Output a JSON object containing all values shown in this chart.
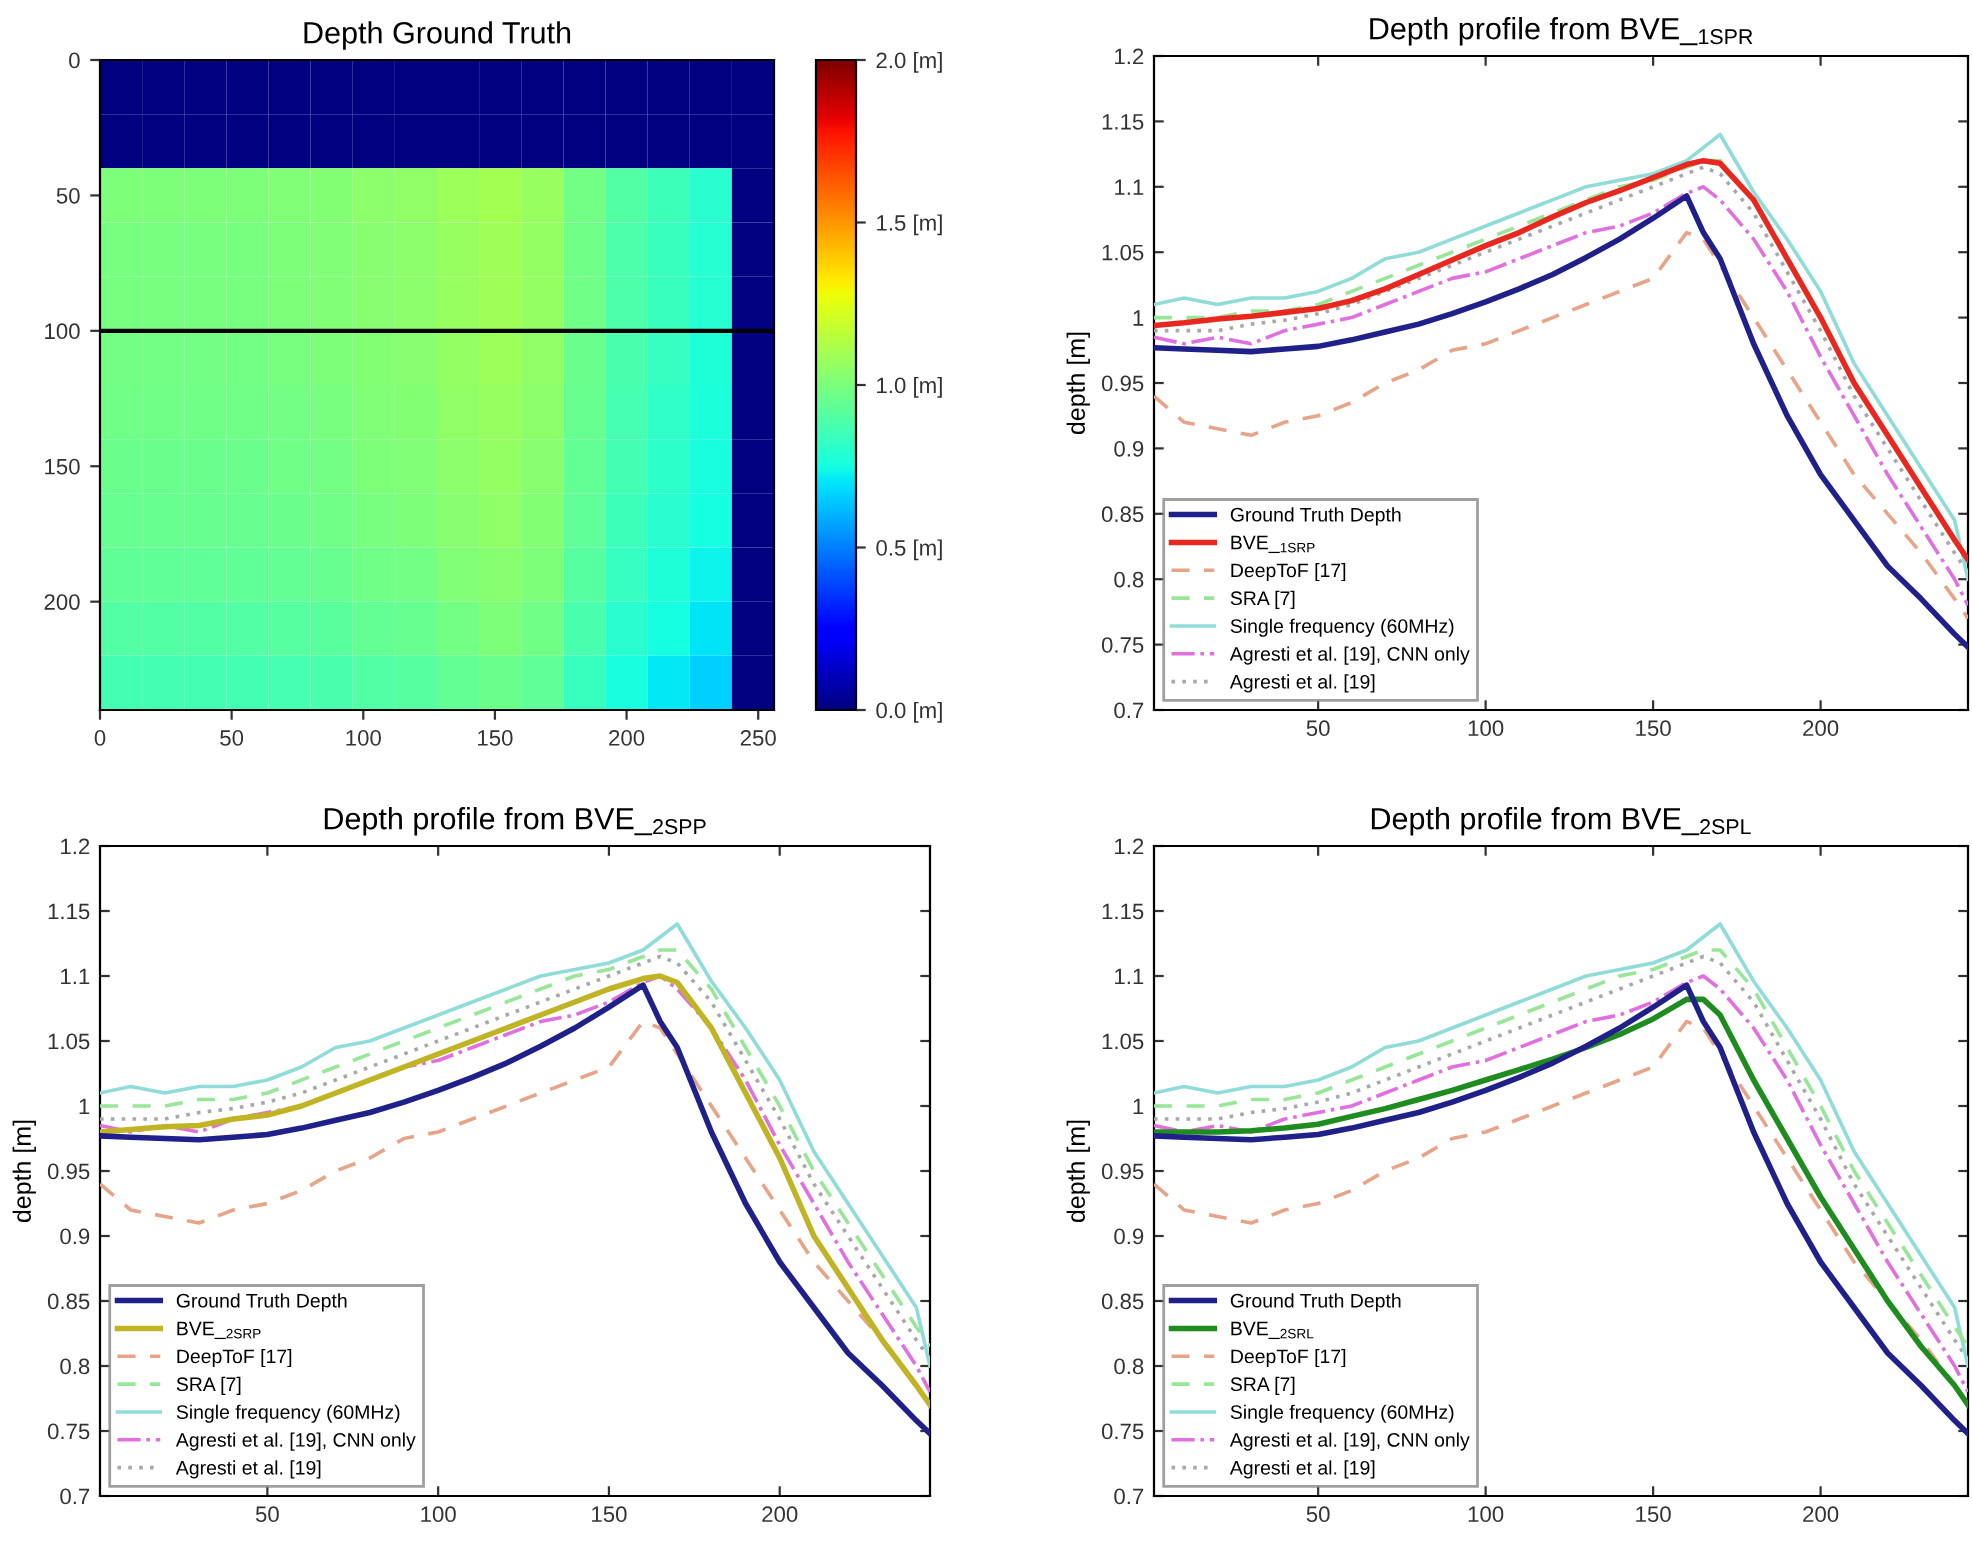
{
  "chart_data": [
    {
      "type": "heatmap",
      "title": "Depth Ground Truth",
      "xlim": [
        0,
        256
      ],
      "ylim": [
        240,
        0
      ],
      "xticks": [
        0,
        50,
        100,
        150,
        200,
        250
      ],
      "yticks": [
        0,
        50,
        100,
        150,
        200
      ],
      "clim": [
        0,
        2
      ],
      "cticks": [
        {
          "value": 0,
          "label": "0.0 [m]"
        },
        {
          "value": 0.5,
          "label": "0.5 [m]"
        },
        {
          "value": 1,
          "label": "1.0 [m]"
        },
        {
          "value": 1.5,
          "label": "1.5 [m]"
        },
        {
          "value": 2,
          "label": "2.0 [m]"
        }
      ],
      "ref_lines": [
        {
          "axis": "y",
          "value": 100,
          "label": null,
          "color": "#000000"
        }
      ],
      "cells": [
        [
          0,
          0,
          0,
          0,
          0,
          0,
          0,
          0,
          0,
          0,
          0,
          0,
          0,
          0,
          0,
          0
        ],
        [
          0,
          0,
          0,
          0,
          0,
          0,
          0,
          0,
          0,
          0,
          0,
          0,
          0,
          0,
          0,
          0
        ],
        [
          1.0,
          1.0,
          1.0,
          1.0,
          1.01,
          1.02,
          1.04,
          1.05,
          1.08,
          1.1,
          1.07,
          0.98,
          0.9,
          0.85,
          0.8,
          0
        ],
        [
          0.99,
          0.99,
          0.99,
          0.99,
          1.0,
          1.01,
          1.03,
          1.04,
          1.07,
          1.09,
          1.06,
          0.97,
          0.89,
          0.84,
          0.79,
          0
        ],
        [
          0.99,
          0.99,
          0.99,
          0.99,
          1.0,
          1.01,
          1.03,
          1.04,
          1.07,
          1.09,
          1.06,
          0.97,
          0.89,
          0.84,
          0.79,
          0
        ],
        [
          0.98,
          0.98,
          0.98,
          0.98,
          0.99,
          1.0,
          1.02,
          1.03,
          1.06,
          1.08,
          1.05,
          0.96,
          0.88,
          0.83,
          0.78,
          0
        ],
        [
          0.97,
          0.97,
          0.97,
          0.97,
          0.98,
          0.99,
          1.01,
          1.02,
          1.05,
          1.07,
          1.04,
          0.95,
          0.87,
          0.82,
          0.77,
          0
        ],
        [
          0.96,
          0.96,
          0.96,
          0.96,
          0.97,
          0.98,
          1.0,
          1.01,
          1.04,
          1.06,
          1.03,
          0.94,
          0.86,
          0.81,
          0.76,
          0
        ],
        [
          0.95,
          0.95,
          0.95,
          0.95,
          0.96,
          0.97,
          0.99,
          1.0,
          1.03,
          1.05,
          1.02,
          0.93,
          0.85,
          0.8,
          0.75,
          0
        ],
        [
          0.93,
          0.93,
          0.93,
          0.93,
          0.94,
          0.95,
          0.97,
          0.98,
          1.01,
          1.03,
          1.0,
          0.91,
          0.83,
          0.78,
          0.73,
          0
        ],
        [
          0.9,
          0.9,
          0.9,
          0.9,
          0.91,
          0.92,
          0.94,
          0.95,
          0.98,
          1.0,
          0.97,
          0.88,
          0.8,
          0.75,
          0.7,
          0
        ],
        [
          0.86,
          0.86,
          0.86,
          0.86,
          0.87,
          0.88,
          0.9,
          0.91,
          0.94,
          0.96,
          0.93,
          0.84,
          0.76,
          0.71,
          0.66,
          0
        ]
      ]
    },
    {
      "type": "line",
      "title": "Depth profile from BVE_$_{1SPR}$",
      "ylabel": "depth [m]",
      "x": [
        1,
        10,
        20,
        30,
        40,
        50,
        60,
        70,
        80,
        90,
        100,
        110,
        120,
        130,
        140,
        150,
        160,
        165,
        170,
        180,
        190,
        200,
        210,
        220,
        230,
        240,
        244
      ],
      "xlim": [
        1,
        244
      ],
      "xticks": [
        50,
        100,
        150,
        200
      ],
      "ylim": [
        0.7,
        1.2
      ],
      "yticks": [
        0.7,
        0.75,
        0.8,
        0.85,
        0.9,
        0.95,
        1,
        1.05,
        1.1,
        1.15,
        1.2
      ],
      "grid": false,
      "legend": "bottom left",
      "series": [
        {
          "name": "Ground Truth Depth",
          "color": "#20208a",
          "line_style": "solid",
          "values": [
            0.977,
            0.976,
            0.975,
            0.974,
            0.976,
            0.978,
            0.983,
            0.989,
            0.995,
            1.003,
            1.012,
            1.022,
            1.033,
            1.046,
            1.06,
            1.076,
            1.093,
            1.065,
            1.045,
            0.98,
            0.925,
            0.88,
            0.845,
            0.81,
            0.785,
            0.758,
            0.748
          ]
        },
        {
          "name": "BVE_$_{1SRP}$",
          "color": "#e8281e",
          "line_style": "solid",
          "values": [
            0.994,
            0.996,
            0.999,
            1.001,
            1.004,
            1.007,
            1.013,
            1.022,
            1.033,
            1.044,
            1.055,
            1.065,
            1.077,
            1.088,
            1.097,
            1.107,
            1.117,
            1.12,
            1.118,
            1.09,
            1.045,
            1.0,
            0.95,
            0.91,
            0.87,
            0.83,
            0.815
          ]
        },
        {
          "name": "DeepToF [17]",
          "color": "#e8a488",
          "line_style": "dashed",
          "values": [
            0.94,
            0.92,
            0.915,
            0.91,
            0.92,
            0.925,
            0.935,
            0.95,
            0.96,
            0.975,
            0.98,
            0.99,
            1.0,
            1.01,
            1.02,
            1.03,
            1.065,
            1.06,
            1.04,
            1.0,
            0.96,
            0.92,
            0.88,
            0.85,
            0.82,
            0.785,
            0.77
          ]
        },
        {
          "name": "SRA [7]",
          "color": "#98e698",
          "line_style": "dashed",
          "values": [
            1.0,
            1.0,
            1.0,
            1.005,
            1.005,
            1.01,
            1.02,
            1.03,
            1.04,
            1.05,
            1.06,
            1.07,
            1.08,
            1.09,
            1.1,
            1.105,
            1.115,
            1.12,
            1.12,
            1.09,
            1.045,
            1.0,
            0.95,
            0.91,
            0.87,
            0.83,
            0.815
          ]
        },
        {
          "name": "Single frequency (60MHz)",
          "color": "#8fdcd8",
          "line_style": "solid",
          "values": [
            1.01,
            1.015,
            1.01,
            1.015,
            1.015,
            1.02,
            1.03,
            1.045,
            1.05,
            1.06,
            1.07,
            1.08,
            1.09,
            1.1,
            1.105,
            1.11,
            1.12,
            1.13,
            1.14,
            1.096,
            1.06,
            1.02,
            0.965,
            0.925,
            0.885,
            0.845,
            0.8
          ]
        },
        {
          "name": "Agresti et al. [19], CNN only",
          "color": "#e070e0",
          "line_style": "dashdot",
          "values": [
            0.985,
            0.98,
            0.985,
            0.98,
            0.99,
            0.995,
            1.0,
            1.01,
            1.02,
            1.03,
            1.035,
            1.045,
            1.055,
            1.065,
            1.07,
            1.08,
            1.095,
            1.1,
            1.09,
            1.06,
            1.02,
            0.97,
            0.925,
            0.88,
            0.84,
            0.8,
            0.78
          ]
        },
        {
          "name": "Agresti et al. [19]",
          "color": "#a8a8a8",
          "line_style": "dotted",
          "values": [
            0.99,
            0.99,
            0.99,
            0.995,
            0.998,
            1.003,
            1.01,
            1.02,
            1.03,
            1.04,
            1.05,
            1.06,
            1.07,
            1.08,
            1.09,
            1.1,
            1.11,
            1.115,
            1.11,
            1.08,
            1.035,
            0.99,
            0.94,
            0.9,
            0.86,
            0.82,
            0.805
          ]
        }
      ]
    },
    {
      "type": "line",
      "title": "Depth profile from BVE_$_{2SPP}$",
      "ylabel": "depth [m]",
      "x": [
        1,
        10,
        20,
        30,
        40,
        50,
        60,
        70,
        80,
        90,
        100,
        110,
        120,
        130,
        140,
        150,
        160,
        165,
        170,
        180,
        190,
        200,
        210,
        220,
        230,
        240,
        244
      ],
      "xlim": [
        1,
        244
      ],
      "xticks": [
        50,
        100,
        150,
        200
      ],
      "ylim": [
        0.7,
        1.2
      ],
      "yticks": [
        0.7,
        0.75,
        0.8,
        0.85,
        0.9,
        0.95,
        1,
        1.05,
        1.1,
        1.15,
        1.2
      ],
      "grid": false,
      "legend": "bottom left",
      "series": [
        {
          "name": "Ground Truth Depth",
          "color": "#20208a",
          "line_style": "solid",
          "values": [
            0.977,
            0.976,
            0.975,
            0.974,
            0.976,
            0.978,
            0.983,
            0.989,
            0.995,
            1.003,
            1.012,
            1.022,
            1.033,
            1.046,
            1.06,
            1.076,
            1.093,
            1.065,
            1.045,
            0.98,
            0.925,
            0.88,
            0.845,
            0.81,
            0.785,
            0.758,
            0.748
          ]
        },
        {
          "name": "BVE_$_{2SRP}$",
          "color": "#c0b424",
          "line_style": "solid",
          "values": [
            0.98,
            0.982,
            0.984,
            0.985,
            0.99,
            0.993,
            1.0,
            1.01,
            1.02,
            1.03,
            1.04,
            1.05,
            1.06,
            1.07,
            1.08,
            1.09,
            1.098,
            1.1,
            1.095,
            1.06,
            1.01,
            0.96,
            0.9,
            0.86,
            0.82,
            0.785,
            0.77
          ]
        },
        {
          "name": "DeepToF [17]",
          "color": "#e8a488",
          "line_style": "dashed",
          "values": [
            0.94,
            0.92,
            0.915,
            0.91,
            0.92,
            0.925,
            0.935,
            0.95,
            0.96,
            0.975,
            0.98,
            0.99,
            1.0,
            1.01,
            1.02,
            1.03,
            1.065,
            1.06,
            1.04,
            1.0,
            0.96,
            0.92,
            0.88,
            0.85,
            0.82,
            0.785,
            0.77
          ]
        },
        {
          "name": "SRA [7]",
          "color": "#98e698",
          "line_style": "dashed",
          "values": [
            1.0,
            1.0,
            1.0,
            1.005,
            1.005,
            1.01,
            1.02,
            1.03,
            1.04,
            1.05,
            1.06,
            1.07,
            1.08,
            1.09,
            1.1,
            1.105,
            1.115,
            1.12,
            1.12,
            1.09,
            1.045,
            1.0,
            0.95,
            0.91,
            0.87,
            0.83,
            0.815
          ]
        },
        {
          "name": "Single frequency (60MHz)",
          "color": "#8fdcd8",
          "line_style": "solid",
          "values": [
            1.01,
            1.015,
            1.01,
            1.015,
            1.015,
            1.02,
            1.03,
            1.045,
            1.05,
            1.06,
            1.07,
            1.08,
            1.09,
            1.1,
            1.105,
            1.11,
            1.12,
            1.13,
            1.14,
            1.096,
            1.06,
            1.02,
            0.965,
            0.925,
            0.885,
            0.845,
            0.8
          ]
        },
        {
          "name": "Agresti et al. [19], CNN only",
          "color": "#e070e0",
          "line_style": "dashdot",
          "values": [
            0.985,
            0.98,
            0.985,
            0.98,
            0.99,
            0.995,
            1.0,
            1.01,
            1.02,
            1.03,
            1.035,
            1.045,
            1.055,
            1.065,
            1.07,
            1.08,
            1.095,
            1.1,
            1.09,
            1.06,
            1.02,
            0.97,
            0.925,
            0.88,
            0.84,
            0.8,
            0.78
          ]
        },
        {
          "name": "Agresti et al. [19]",
          "color": "#a8a8a8",
          "line_style": "dotted",
          "values": [
            0.99,
            0.99,
            0.99,
            0.995,
            0.998,
            1.003,
            1.01,
            1.02,
            1.03,
            1.04,
            1.05,
            1.06,
            1.07,
            1.08,
            1.09,
            1.1,
            1.11,
            1.115,
            1.11,
            1.08,
            1.035,
            0.99,
            0.94,
            0.9,
            0.86,
            0.82,
            0.805
          ]
        }
      ]
    },
    {
      "type": "line",
      "title": "Depth profile from BVE_$_{2SPL}$",
      "ylabel": "depth [m]",
      "x": [
        1,
        10,
        20,
        30,
        40,
        50,
        60,
        70,
        80,
        90,
        100,
        110,
        120,
        130,
        140,
        150,
        160,
        165,
        170,
        180,
        190,
        200,
        210,
        220,
        230,
        240,
        244
      ],
      "xlim": [
        1,
        244
      ],
      "xticks": [
        50,
        100,
        150,
        200
      ],
      "ylim": [
        0.7,
        1.2
      ],
      "yticks": [
        0.7,
        0.75,
        0.8,
        0.85,
        0.9,
        0.95,
        1,
        1.05,
        1.1,
        1.15,
        1.2
      ],
      "grid": false,
      "legend": "bottom left",
      "series": [
        {
          "name": "Ground Truth Depth",
          "color": "#20208a",
          "line_style": "solid",
          "values": [
            0.977,
            0.976,
            0.975,
            0.974,
            0.976,
            0.978,
            0.983,
            0.989,
            0.995,
            1.003,
            1.012,
            1.022,
            1.033,
            1.046,
            1.06,
            1.076,
            1.093,
            1.065,
            1.045,
            0.98,
            0.925,
            0.88,
            0.845,
            0.81,
            0.785,
            0.758,
            0.748
          ]
        },
        {
          "name": "BVE_$_{2SRL}$",
          "color": "#1e8c1e",
          "line_style": "solid",
          "values": [
            0.98,
            0.98,
            0.98,
            0.981,
            0.983,
            0.986,
            0.992,
            0.998,
            1.005,
            1.012,
            1.02,
            1.028,
            1.036,
            1.045,
            1.055,
            1.067,
            1.082,
            1.082,
            1.07,
            1.02,
            0.975,
            0.93,
            0.89,
            0.85,
            0.815,
            0.785,
            0.77
          ]
        },
        {
          "name": "DeepToF [17]",
          "color": "#e8a488",
          "line_style": "dashed",
          "values": [
            0.94,
            0.92,
            0.915,
            0.91,
            0.92,
            0.925,
            0.935,
            0.95,
            0.96,
            0.975,
            0.98,
            0.99,
            1.0,
            1.01,
            1.02,
            1.03,
            1.065,
            1.06,
            1.04,
            1.0,
            0.96,
            0.92,
            0.88,
            0.85,
            0.82,
            0.785,
            0.77
          ]
        },
        {
          "name": "SRA [7]",
          "color": "#98e698",
          "line_style": "dashed",
          "values": [
            1.0,
            1.0,
            1.0,
            1.005,
            1.005,
            1.01,
            1.02,
            1.03,
            1.04,
            1.05,
            1.06,
            1.07,
            1.08,
            1.09,
            1.1,
            1.105,
            1.115,
            1.12,
            1.12,
            1.09,
            1.045,
            1.0,
            0.95,
            0.91,
            0.87,
            0.83,
            0.815
          ]
        },
        {
          "name": "Single frequency (60MHz)",
          "color": "#8fdcd8",
          "line_style": "solid",
          "values": [
            1.01,
            1.015,
            1.01,
            1.015,
            1.015,
            1.02,
            1.03,
            1.045,
            1.05,
            1.06,
            1.07,
            1.08,
            1.09,
            1.1,
            1.105,
            1.11,
            1.12,
            1.13,
            1.14,
            1.096,
            1.06,
            1.02,
            0.965,
            0.925,
            0.885,
            0.845,
            0.8
          ]
        },
        {
          "name": "Agresti et al. [19], CNN only",
          "color": "#e070e0",
          "line_style": "dashdot",
          "values": [
            0.985,
            0.98,
            0.985,
            0.98,
            0.99,
            0.995,
            1.0,
            1.01,
            1.02,
            1.03,
            1.035,
            1.045,
            1.055,
            1.065,
            1.07,
            1.08,
            1.095,
            1.1,
            1.09,
            1.06,
            1.02,
            0.97,
            0.925,
            0.88,
            0.84,
            0.8,
            0.78
          ]
        },
        {
          "name": "Agresti et al. [19]",
          "color": "#a8a8a8",
          "line_style": "dotted",
          "values": [
            0.99,
            0.99,
            0.99,
            0.995,
            0.998,
            1.003,
            1.01,
            1.02,
            1.03,
            1.04,
            1.05,
            1.06,
            1.07,
            1.08,
            1.09,
            1.1,
            1.11,
            1.115,
            1.11,
            1.08,
            1.035,
            0.99,
            0.94,
            0.9,
            0.86,
            0.82,
            0.805
          ]
        }
      ]
    }
  ]
}
